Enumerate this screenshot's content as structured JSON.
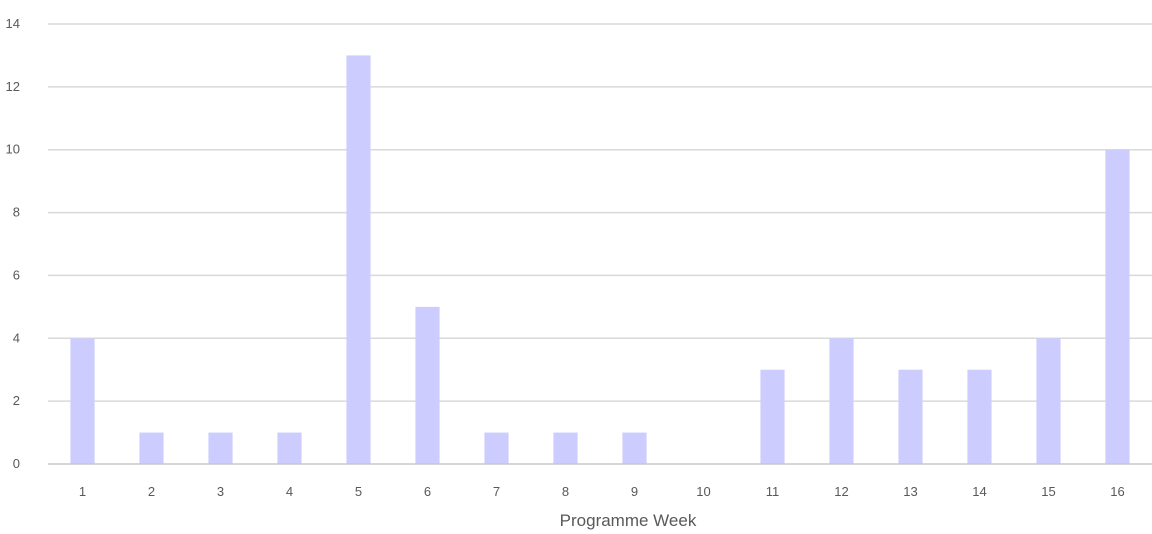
{
  "chart_data": {
    "type": "bar",
    "title": "",
    "xlabel": "Programme Week",
    "ylabel": "",
    "categories": [
      "1",
      "2",
      "3",
      "4",
      "5",
      "6",
      "7",
      "8",
      "9",
      "10",
      "11",
      "12",
      "13",
      "14",
      "15",
      "16"
    ],
    "values": [
      4,
      1,
      1,
      1,
      13,
      5,
      1,
      1,
      1,
      0,
      3,
      4,
      3,
      3,
      4,
      10
    ],
    "ylim": [
      0,
      14
    ],
    "yticks": [
      "0",
      "2",
      "4",
      "6",
      "8",
      "10",
      "12",
      "14"
    ],
    "grid": true,
    "legend": "none",
    "bar_color": "#ccccff"
  }
}
